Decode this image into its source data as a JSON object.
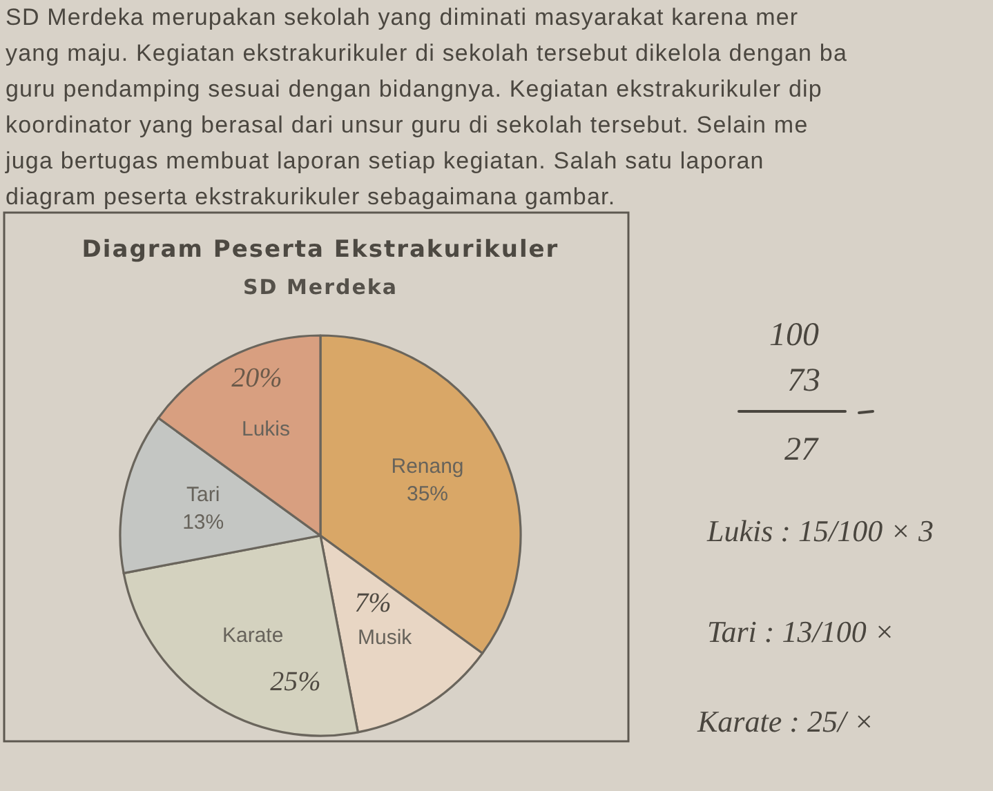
{
  "chart_data": {
    "type": "pie",
    "title": "Diagram Peserta Ekstrakurikuler",
    "subtitle": "SD Merdeka",
    "categories": [
      "Renang",
      "Musik",
      "Karate",
      "Tari",
      "Lukis"
    ],
    "values": [
      35,
      12,
      25,
      13,
      15
    ],
    "colors": [
      "#d9a767",
      "#e8d6c4",
      "#d4d2bf",
      "#c4c6c3",
      "#d89f80"
    ],
    "value_labels": [
      "35%",
      null,
      null,
      "13%",
      null
    ],
    "annotations": [
      "SD Merdeka merupakan sekolah yang diminati masyarakat karena mer",
      "yang maju. Kegiatan ekstrakurikuler di sekolah tersebut dikelola dengan ba",
      "guru pendamping sesuai dengan bidangnya. Kegiatan ekstrakurikuler dip",
      "koordinator yang berasal dari unsur guru di sekolah tersebut. Selain me",
      "juga bertugas membuat laporan setiap kegiatan. Salah satu laporan",
      "diagram peserta ekstrakurikuler sebagaimana gambar.",
      "20%",
      "7%",
      "25%",
      "100",
      "73",
      "27",
      "Lukis : 15/100 × 3",
      "Tari : 13/100 ×",
      "Karate : 25/ ×"
    ]
  }
}
